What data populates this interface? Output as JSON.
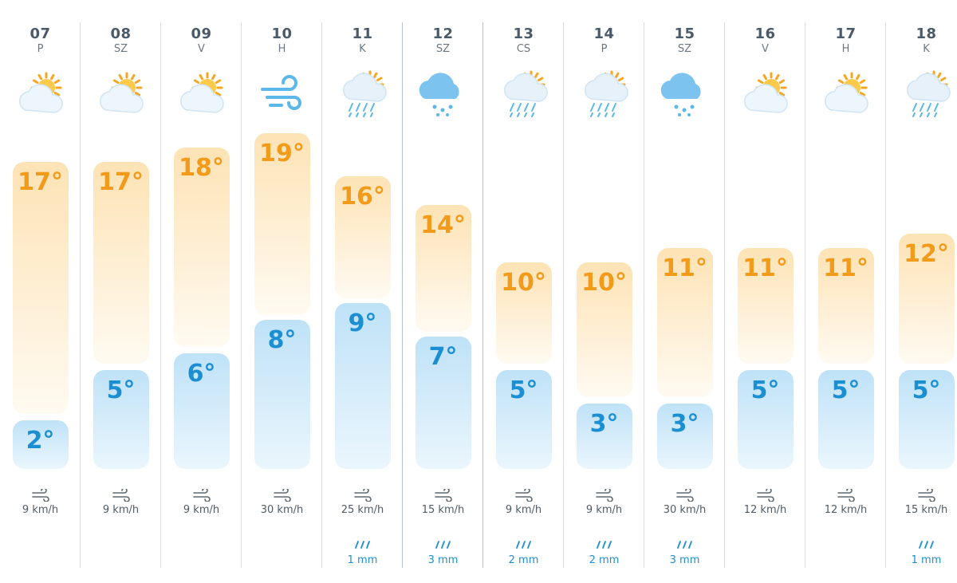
{
  "scale": {
    "max_temp": 19,
    "min_temp": 2
  },
  "days": [
    {
      "date": "07",
      "day": "P",
      "icon": "partly-cloudy-icon",
      "max": "17°",
      "min": "2°",
      "max_v": 17,
      "min_v": 2,
      "wind": "9 km/h",
      "precip": ""
    },
    {
      "date": "08",
      "day": "SZ",
      "icon": "partly-cloudy-icon",
      "max": "17°",
      "min": "5°",
      "max_v": 17,
      "min_v": 5,
      "wind": "9 km/h",
      "precip": ""
    },
    {
      "date": "09",
      "day": "V",
      "icon": "partly-cloudy-icon",
      "max": "18°",
      "min": "6°",
      "max_v": 18,
      "min_v": 6,
      "wind": "9 km/h",
      "precip": ""
    },
    {
      "date": "10",
      "day": "H",
      "icon": "wind-icon",
      "max": "19°",
      "min": "8°",
      "max_v": 19,
      "min_v": 8,
      "wind": "30 km/h",
      "precip": ""
    },
    {
      "date": "11",
      "day": "K",
      "icon": "sun-rain-icon",
      "max": "16°",
      "min": "9°",
      "max_v": 16,
      "min_v": 9,
      "wind": "25 km/h",
      "precip": "1 mm"
    },
    {
      "date": "12",
      "day": "SZ",
      "icon": "rain-cloud-icon",
      "max": "14°",
      "min": "7°",
      "max_v": 14,
      "min_v": 7,
      "wind": "15 km/h",
      "precip": "3 mm"
    },
    {
      "date": "13",
      "day": "CS",
      "icon": "sun-rain-icon",
      "max": "10°",
      "min": "5°",
      "max_v": 10,
      "min_v": 5,
      "wind": "9 km/h",
      "precip": "2 mm"
    },
    {
      "date": "14",
      "day": "P",
      "icon": "sun-rain-icon",
      "max": "10°",
      "min": "3°",
      "max_v": 10,
      "min_v": 3,
      "wind": "9 km/h",
      "precip": "2 mm"
    },
    {
      "date": "15",
      "day": "SZ",
      "icon": "rain-cloud-icon",
      "max": "11°",
      "min": "3°",
      "max_v": 11,
      "min_v": 3,
      "wind": "30 km/h",
      "precip": "3 mm"
    },
    {
      "date": "16",
      "day": "V",
      "icon": "partly-cloudy-icon",
      "max": "11°",
      "min": "5°",
      "max_v": 11,
      "min_v": 5,
      "wind": "12 km/h",
      "precip": ""
    },
    {
      "date": "17",
      "day": "H",
      "icon": "partly-cloudy-icon",
      "max": "11°",
      "min": "5°",
      "max_v": 11,
      "min_v": 5,
      "wind": "12 km/h",
      "precip": ""
    },
    {
      "date": "18",
      "day": "K",
      "icon": "sun-rain-icon",
      "max": "12°",
      "min": "5°",
      "max_v": 12,
      "min_v": 5,
      "wind": "15 km/h",
      "precip": "1 mm"
    }
  ],
  "colors": {
    "max": "#f29a19",
    "min": "#1c8fd2",
    "precip": "#1f8fd0"
  }
}
